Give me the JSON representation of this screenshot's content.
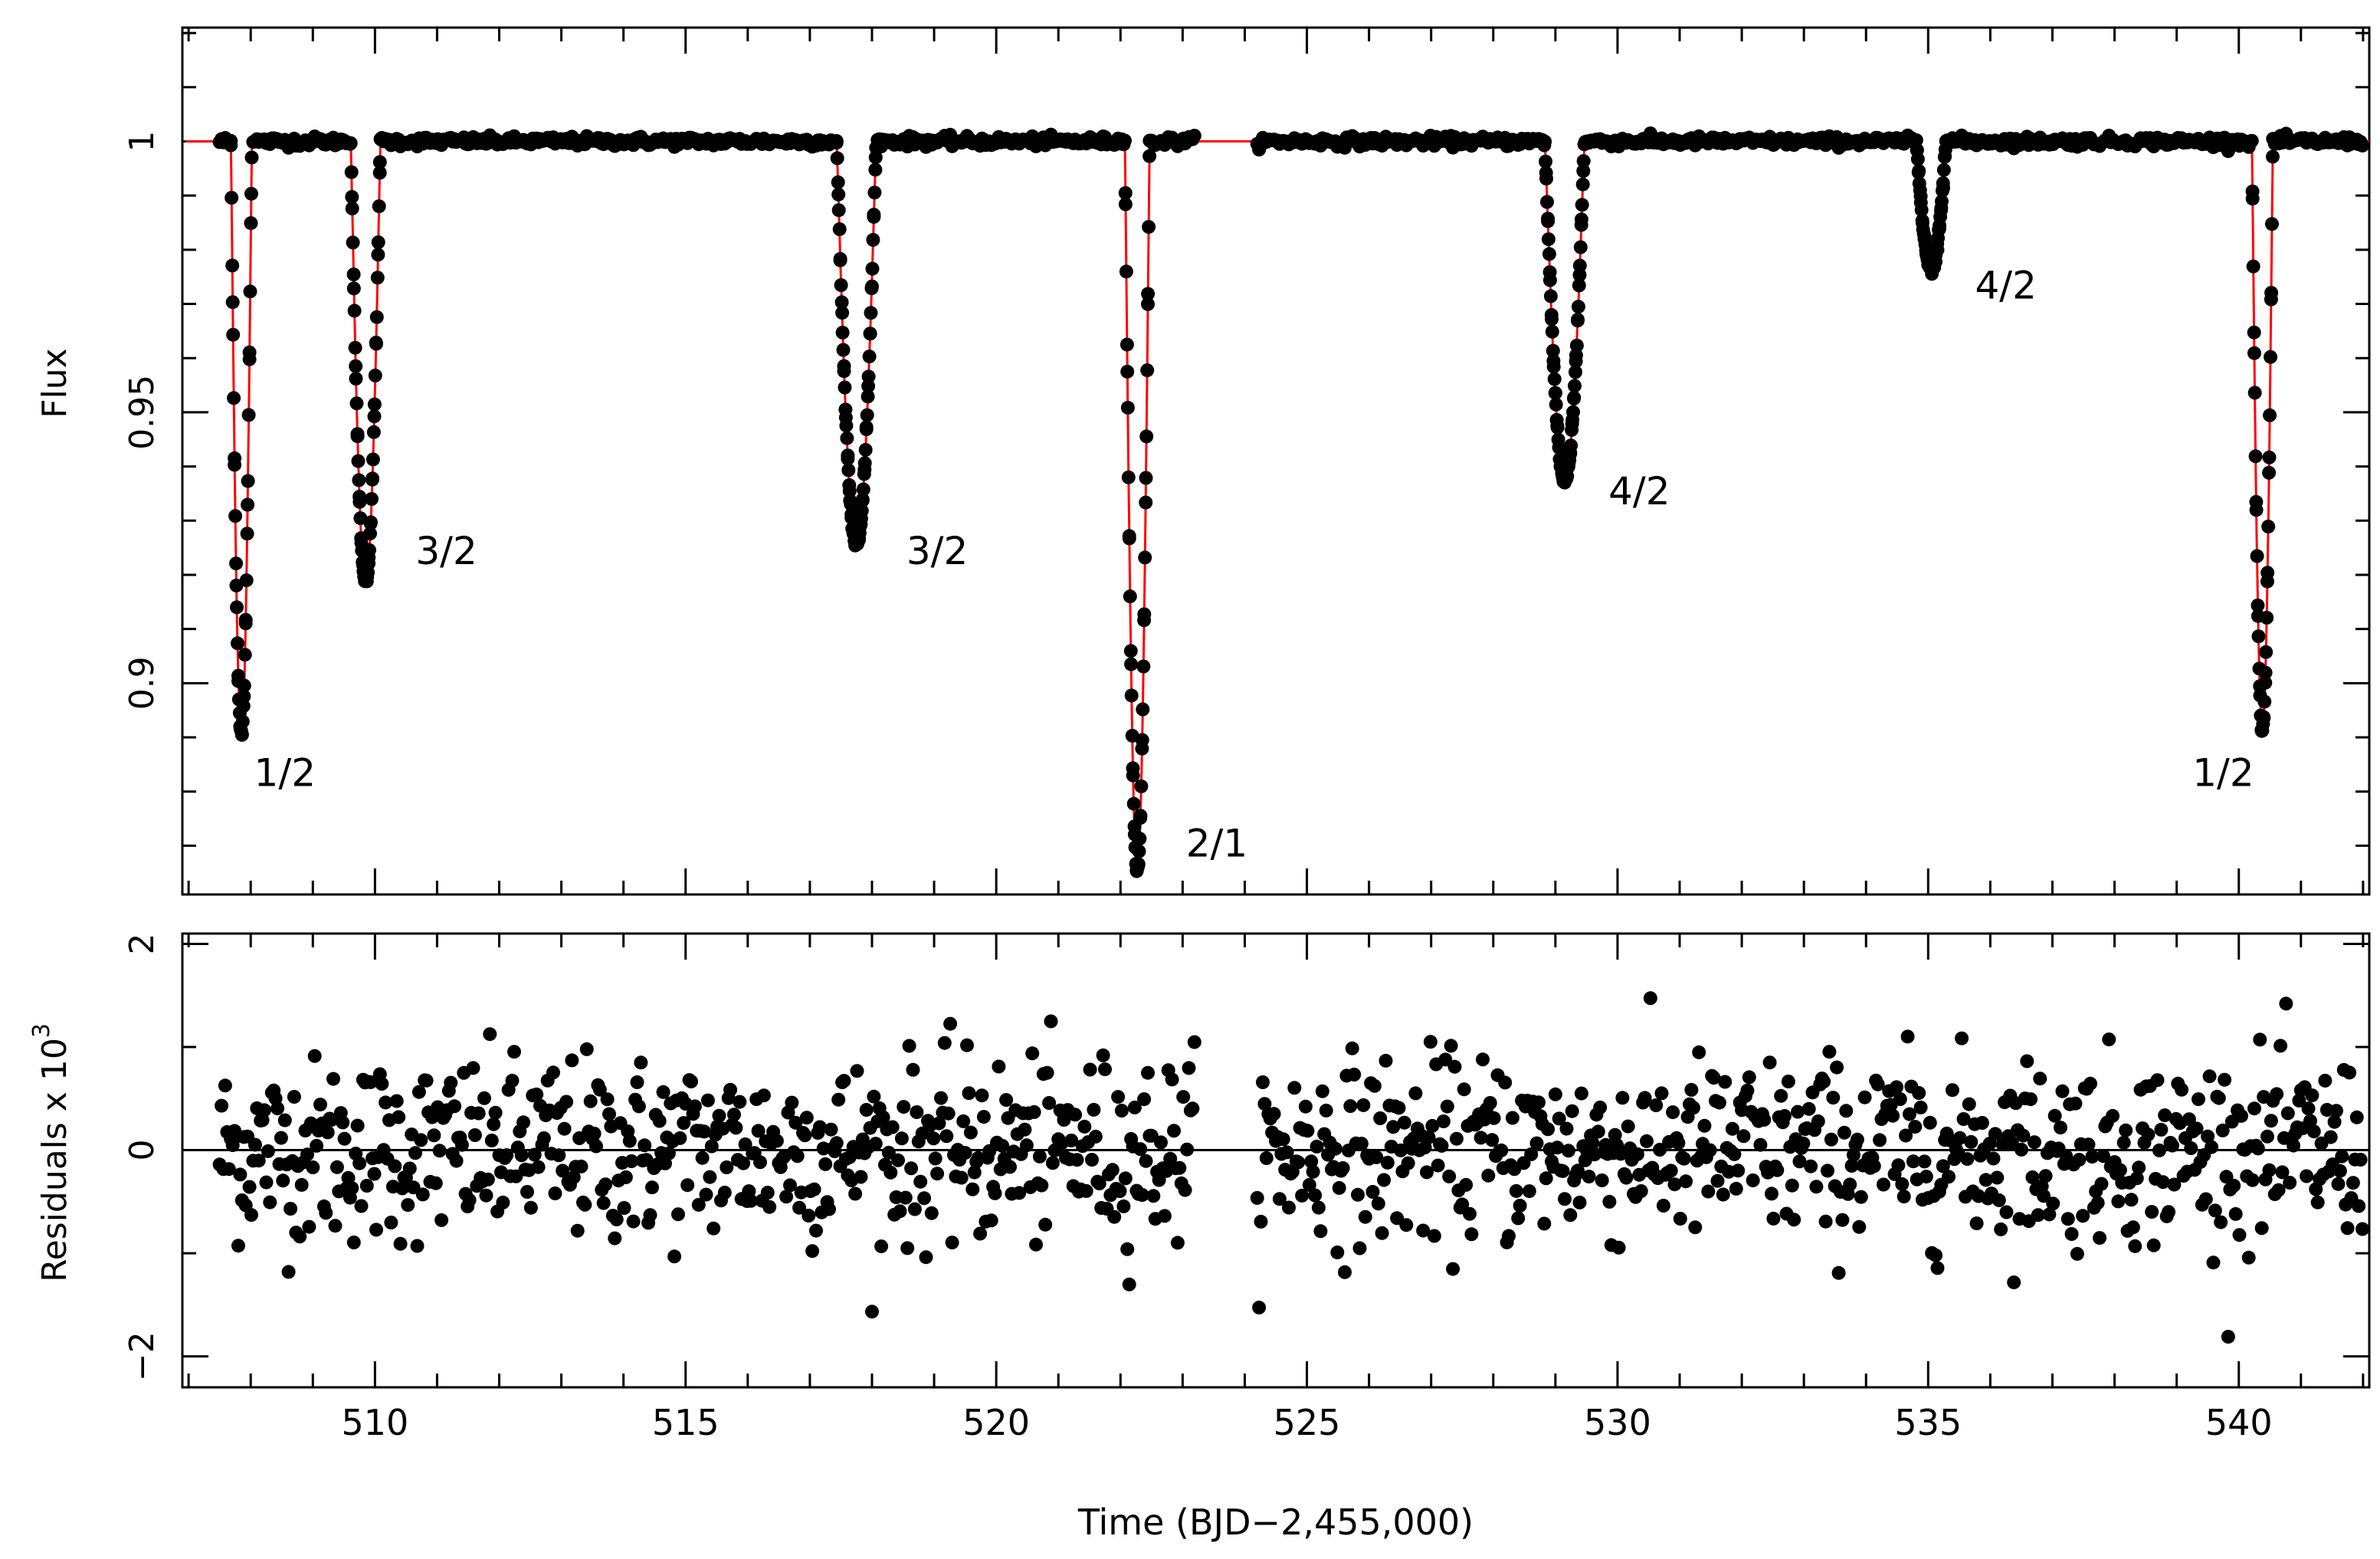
{
  "chart_data": [
    {
      "type": "line",
      "panel": "top",
      "ylabel": "Flux",
      "xlim": [
        506.9,
        542.1
      ],
      "ylim": [
        0.861,
        1.021
      ],
      "yticks": [
        0.9,
        0.95,
        1
      ],
      "ytick_labels": [
        "0.9",
        "0.95",
        "1"
      ],
      "y_minor_step": 0.01,
      "x_minor_step": 1,
      "model_color": "#ff0000",
      "point_color": "#000000",
      "baseline": 1.0,
      "gap": [
        523.3,
        524.1
      ],
      "eclipses": [
        {
          "center": 507.85,
          "depth": 0.1095,
          "half_width": 0.17,
          "label": "1/2"
        },
        {
          "center": 509.85,
          "depth": 0.0815,
          "half_width": 0.24,
          "label": "3/2"
        },
        {
          "center": 517.75,
          "depth": 0.0745,
          "half_width": 0.32,
          "label": "3/2"
        },
        {
          "center": 522.27,
          "depth": 0.1345,
          "half_width": 0.2,
          "label": "2/1"
        },
        {
          "center": 529.15,
          "depth": 0.0625,
          "half_width": 0.32,
          "label": "4/2"
        },
        {
          "center": 535.05,
          "depth": 0.0235,
          "half_width": 0.24,
          "label": "4/2"
        },
        {
          "center": 540.38,
          "depth": 0.1085,
          "half_width": 0.17,
          "label": "1/2"
        }
      ],
      "annotations": [
        {
          "text": "1/2",
          "x": 508.55,
          "y": 0.881
        },
        {
          "text": "3/2",
          "x": 511.15,
          "y": 0.922
        },
        {
          "text": "3/2",
          "x": 519.05,
          "y": 0.922
        },
        {
          "text": "2/1",
          "x": 523.55,
          "y": 0.868
        },
        {
          "text": "4/2",
          "x": 530.35,
          "y": 0.933
        },
        {
          "text": "4/2",
          "x": 536.25,
          "y": 0.971
        },
        {
          "text": "1/2",
          "x": 539.75,
          "y": 0.881
        }
      ]
    },
    {
      "type": "scatter",
      "panel": "bottom",
      "ylabel": "Residuals x 10",
      "ylabel_exponent": "3",
      "xlabel": "Time (BJD−2,455,000)",
      "xlim": [
        506.9,
        542.1
      ],
      "ylim": [
        -2.3,
        2.1
      ],
      "xticks": [
        510,
        515,
        520,
        525,
        530,
        535,
        540
      ],
      "xtick_labels": [
        "510",
        "515",
        "520",
        "525",
        "530",
        "535",
        "540"
      ],
      "yticks": [
        -2,
        0,
        2
      ],
      "ytick_labels": [
        "−2",
        "0",
        "2"
      ],
      "y_minor_step": 1,
      "x_minor_step": 1,
      "zero_line": 0,
      "scatter_rms": 0.45,
      "segments": [
        [
          507.5,
          523.2
        ],
        [
          524.2,
          542.0
        ]
      ],
      "n_points": 1150
    }
  ]
}
